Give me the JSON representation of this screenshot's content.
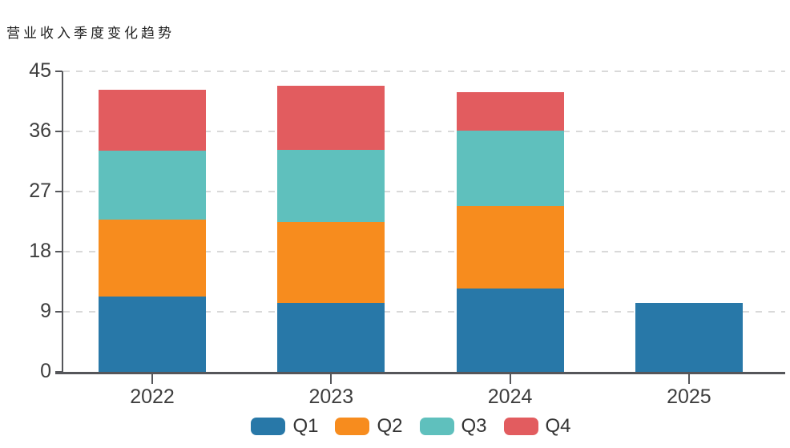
{
  "title": "营业收入季度变化趋势",
  "chart_data": {
    "type": "bar",
    "stacked": true,
    "title": "营业收入季度变化趋势",
    "categories": [
      "2022",
      "2023",
      "2024",
      "2025"
    ],
    "series": [
      {
        "name": "Q1",
        "color": "#2878a8",
        "values": [
          11.3,
          10.3,
          12.5,
          10.3
        ]
      },
      {
        "name": "Q2",
        "color": "#f78c1e",
        "values": [
          11.5,
          12.1,
          12.3,
          0
        ]
      },
      {
        "name": "Q3",
        "color": "#5fc0bd",
        "values": [
          10.3,
          10.8,
          11.3,
          0
        ]
      },
      {
        "name": "Q4",
        "color": "#e25c5f",
        "values": [
          9.2,
          9.7,
          5.8,
          0
        ]
      }
    ],
    "xlabel": "",
    "ylabel": "",
    "ylim": [
      0,
      45
    ],
    "yticks": [
      0,
      9,
      18,
      27,
      36,
      45
    ],
    "grid": "horizontal-dashed",
    "legend_position": "bottom",
    "axis_color": "#55565a",
    "gridline_color": "#d9d9d9"
  }
}
